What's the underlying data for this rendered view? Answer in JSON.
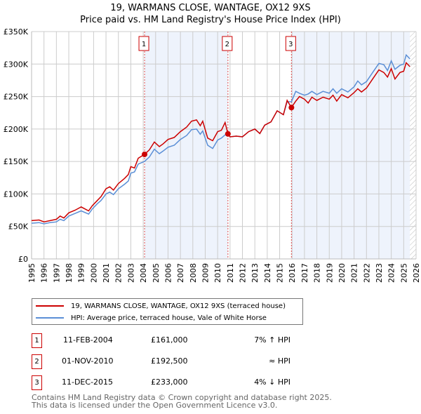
{
  "chart_data": {
    "type": "line",
    "title": "19, WARMANS CLOSE, WANTAGE, OX12 9XS",
    "subtitle": "Price paid vs. HM Land Registry's House Price Index (HPI)",
    "xlim": [
      1995,
      2026
    ],
    "ylim": [
      0,
      350000
    ],
    "x_ticks": [
      "1995",
      "1996",
      "1997",
      "1998",
      "1999",
      "2000",
      "2001",
      "2002",
      "2003",
      "2004",
      "2005",
      "2006",
      "2007",
      "2008",
      "2009",
      "2010",
      "2011",
      "2012",
      "2013",
      "2014",
      "2015",
      "2016",
      "2017",
      "2018",
      "2019",
      "2020",
      "2021",
      "2022",
      "2023",
      "2024",
      "2025",
      "2026"
    ],
    "y_ticks": [
      {
        "v": 0,
        "label": "£0"
      },
      {
        "v": 50000,
        "label": "£50K"
      },
      {
        "v": 100000,
        "label": "£100K"
      },
      {
        "v": 150000,
        "label": "£150K"
      },
      {
        "v": 200000,
        "label": "£200K"
      },
      {
        "v": 250000,
        "label": "£250K"
      },
      {
        "v": 300000,
        "label": "£300K"
      },
      {
        "v": 350000,
        "label": "£350K"
      }
    ],
    "grid": true,
    "series": [
      {
        "name": "19, WARMANS CLOSE, WANTAGE, OX12 9XS (terraced house)",
        "color": "#cc0000",
        "x": [
          1995,
          1995.6,
          1996,
          1996.5,
          1997,
          1997.3,
          1997.6,
          1998,
          1998.5,
          1999,
          1999.6,
          1999.9,
          2000.3,
          2000.6,
          2001,
          2001.3,
          2001.6,
          2002,
          2002.5,
          2002.8,
          2003,
          2003.3,
          2003.6,
          2004.1,
          2004.5,
          2004.9,
          2005.3,
          2005.6,
          2006,
          2006.5,
          2007,
          2007.5,
          2007.9,
          2008.3,
          2008.6,
          2008.8,
          2009.2,
          2009.6,
          2010,
          2010.3,
          2010.6,
          2010.83,
          2011,
          2011.5,
          2012,
          2012.5,
          2013,
          2013.4,
          2013.8,
          2014.3,
          2014.8,
          2015.3,
          2015.6,
          2015.95,
          2016.3,
          2016.6,
          2017,
          2017.3,
          2017.6,
          2018,
          2018.5,
          2019,
          2019.3,
          2019.6,
          2020,
          2020.5,
          2021,
          2021.3,
          2021.6,
          2022,
          2022.5,
          2023,
          2023.4,
          2023.7,
          2024,
          2024.3,
          2024.7,
          2025,
          2025.2,
          2025.5
        ],
        "values": [
          59000,
          60000,
          57000,
          59000,
          61000,
          66000,
          63000,
          71000,
          75000,
          80000,
          74000,
          82000,
          90000,
          96000,
          108000,
          111000,
          106000,
          116000,
          124000,
          130000,
          142000,
          140000,
          155000,
          161000,
          168000,
          180000,
          173000,
          177000,
          184000,
          187000,
          196000,
          203000,
          212000,
          214000,
          205000,
          212000,
          186000,
          182000,
          196000,
          198000,
          210000,
          192500,
          188000,
          189000,
          188000,
          196000,
          200000,
          193000,
          206000,
          211000,
          228000,
          222000,
          244000,
          233000,
          243000,
          250000,
          246000,
          240000,
          249000,
          244000,
          249000,
          246000,
          252000,
          243000,
          253000,
          248000,
          256000,
          262000,
          257000,
          263000,
          277000,
          291000,
          287000,
          280000,
          293000,
          277000,
          287000,
          289000,
          302000,
          296000
        ]
      },
      {
        "name": "HPI: Average price, terraced house, Vale of White Horse",
        "color": "#5b8fd6",
        "x": [
          1995,
          1995.6,
          1996,
          1996.5,
          1997,
          1997.3,
          1997.6,
          1998,
          1998.5,
          1999,
          1999.6,
          1999.9,
          2000.3,
          2000.6,
          2001,
          2001.3,
          2001.6,
          2002,
          2002.5,
          2002.8,
          2003,
          2003.3,
          2003.6,
          2004.1,
          2004.5,
          2004.9,
          2005.3,
          2005.6,
          2006,
          2006.5,
          2007,
          2007.5,
          2007.9,
          2008.3,
          2008.6,
          2008.8,
          2009.2,
          2009.6,
          2010,
          2010.3,
          2010.6,
          2010.83,
          2011,
          2011.5,
          2012,
          2012.5,
          2013,
          2013.4,
          2013.8,
          2014.3,
          2014.8,
          2015.3,
          2015.6,
          2015.95,
          2016.3,
          2016.6,
          2017,
          2017.3,
          2017.6,
          2018,
          2018.5,
          2019,
          2019.3,
          2019.6,
          2020,
          2020.5,
          2021,
          2021.3,
          2021.6,
          2022,
          2022.5,
          2023,
          2023.4,
          2023.7,
          2024,
          2024.3,
          2024.7,
          2025,
          2025.2,
          2025.5
        ],
        "values": [
          55000,
          56000,
          54000,
          56000,
          57000,
          61000,
          59000,
          66000,
          70000,
          74000,
          69000,
          77000,
          85000,
          90000,
          100000,
          103000,
          99000,
          108000,
          115000,
          120000,
          132000,
          134000,
          146000,
          150000,
          157000,
          169000,
          162000,
          166000,
          172000,
          175000,
          184000,
          190000,
          199000,
          200000,
          192000,
          197000,
          175000,
          170000,
          183000,
          186000,
          191000,
          193000,
          188000,
          189000,
          188000,
          196000,
          200000,
          193000,
          206000,
          211000,
          228000,
          222000,
          242000,
          242000,
          258000,
          255000,
          252000,
          254000,
          258000,
          253000,
          258000,
          255000,
          262000,
          255000,
          262000,
          257000,
          265000,
          274000,
          268000,
          273000,
          287000,
          301000,
          299000,
          290000,
          305000,
          292000,
          298000,
          300000,
          314000,
          308000
        ]
      }
    ],
    "sales": [
      {
        "label": "1",
        "x": 2004.11,
        "value": 161000
      },
      {
        "label": "2",
        "x": 2010.83,
        "value": 192500
      },
      {
        "label": "3",
        "x": 2015.95,
        "value": 233000
      }
    ],
    "shaded_ranges": [
      [
        2004.11,
        2010.83
      ],
      [
        2015.95,
        2025.5
      ]
    ],
    "forecast_hatch_from": 2025.5
  },
  "legend": {
    "property": "19, WARMANS CLOSE, WANTAGE, OX12 9XS (terraced house)",
    "hpi": "HPI: Average price, terraced house, Vale of White Horse"
  },
  "transactions": [
    {
      "num": "1",
      "date": "11-FEB-2004",
      "price": "£161,000",
      "hpi": "7% ↑ HPI"
    },
    {
      "num": "2",
      "date": "01-NOV-2010",
      "price": "£192,500",
      "hpi": "≈ HPI"
    },
    {
      "num": "3",
      "date": "11-DEC-2015",
      "price": "£233,000",
      "hpi": "4% ↓ HPI"
    }
  ],
  "footer": {
    "line1": "Contains HM Land Registry data © Crown copyright and database right 2025.",
    "line2": "This data is licensed under the Open Government Licence v3.0."
  }
}
